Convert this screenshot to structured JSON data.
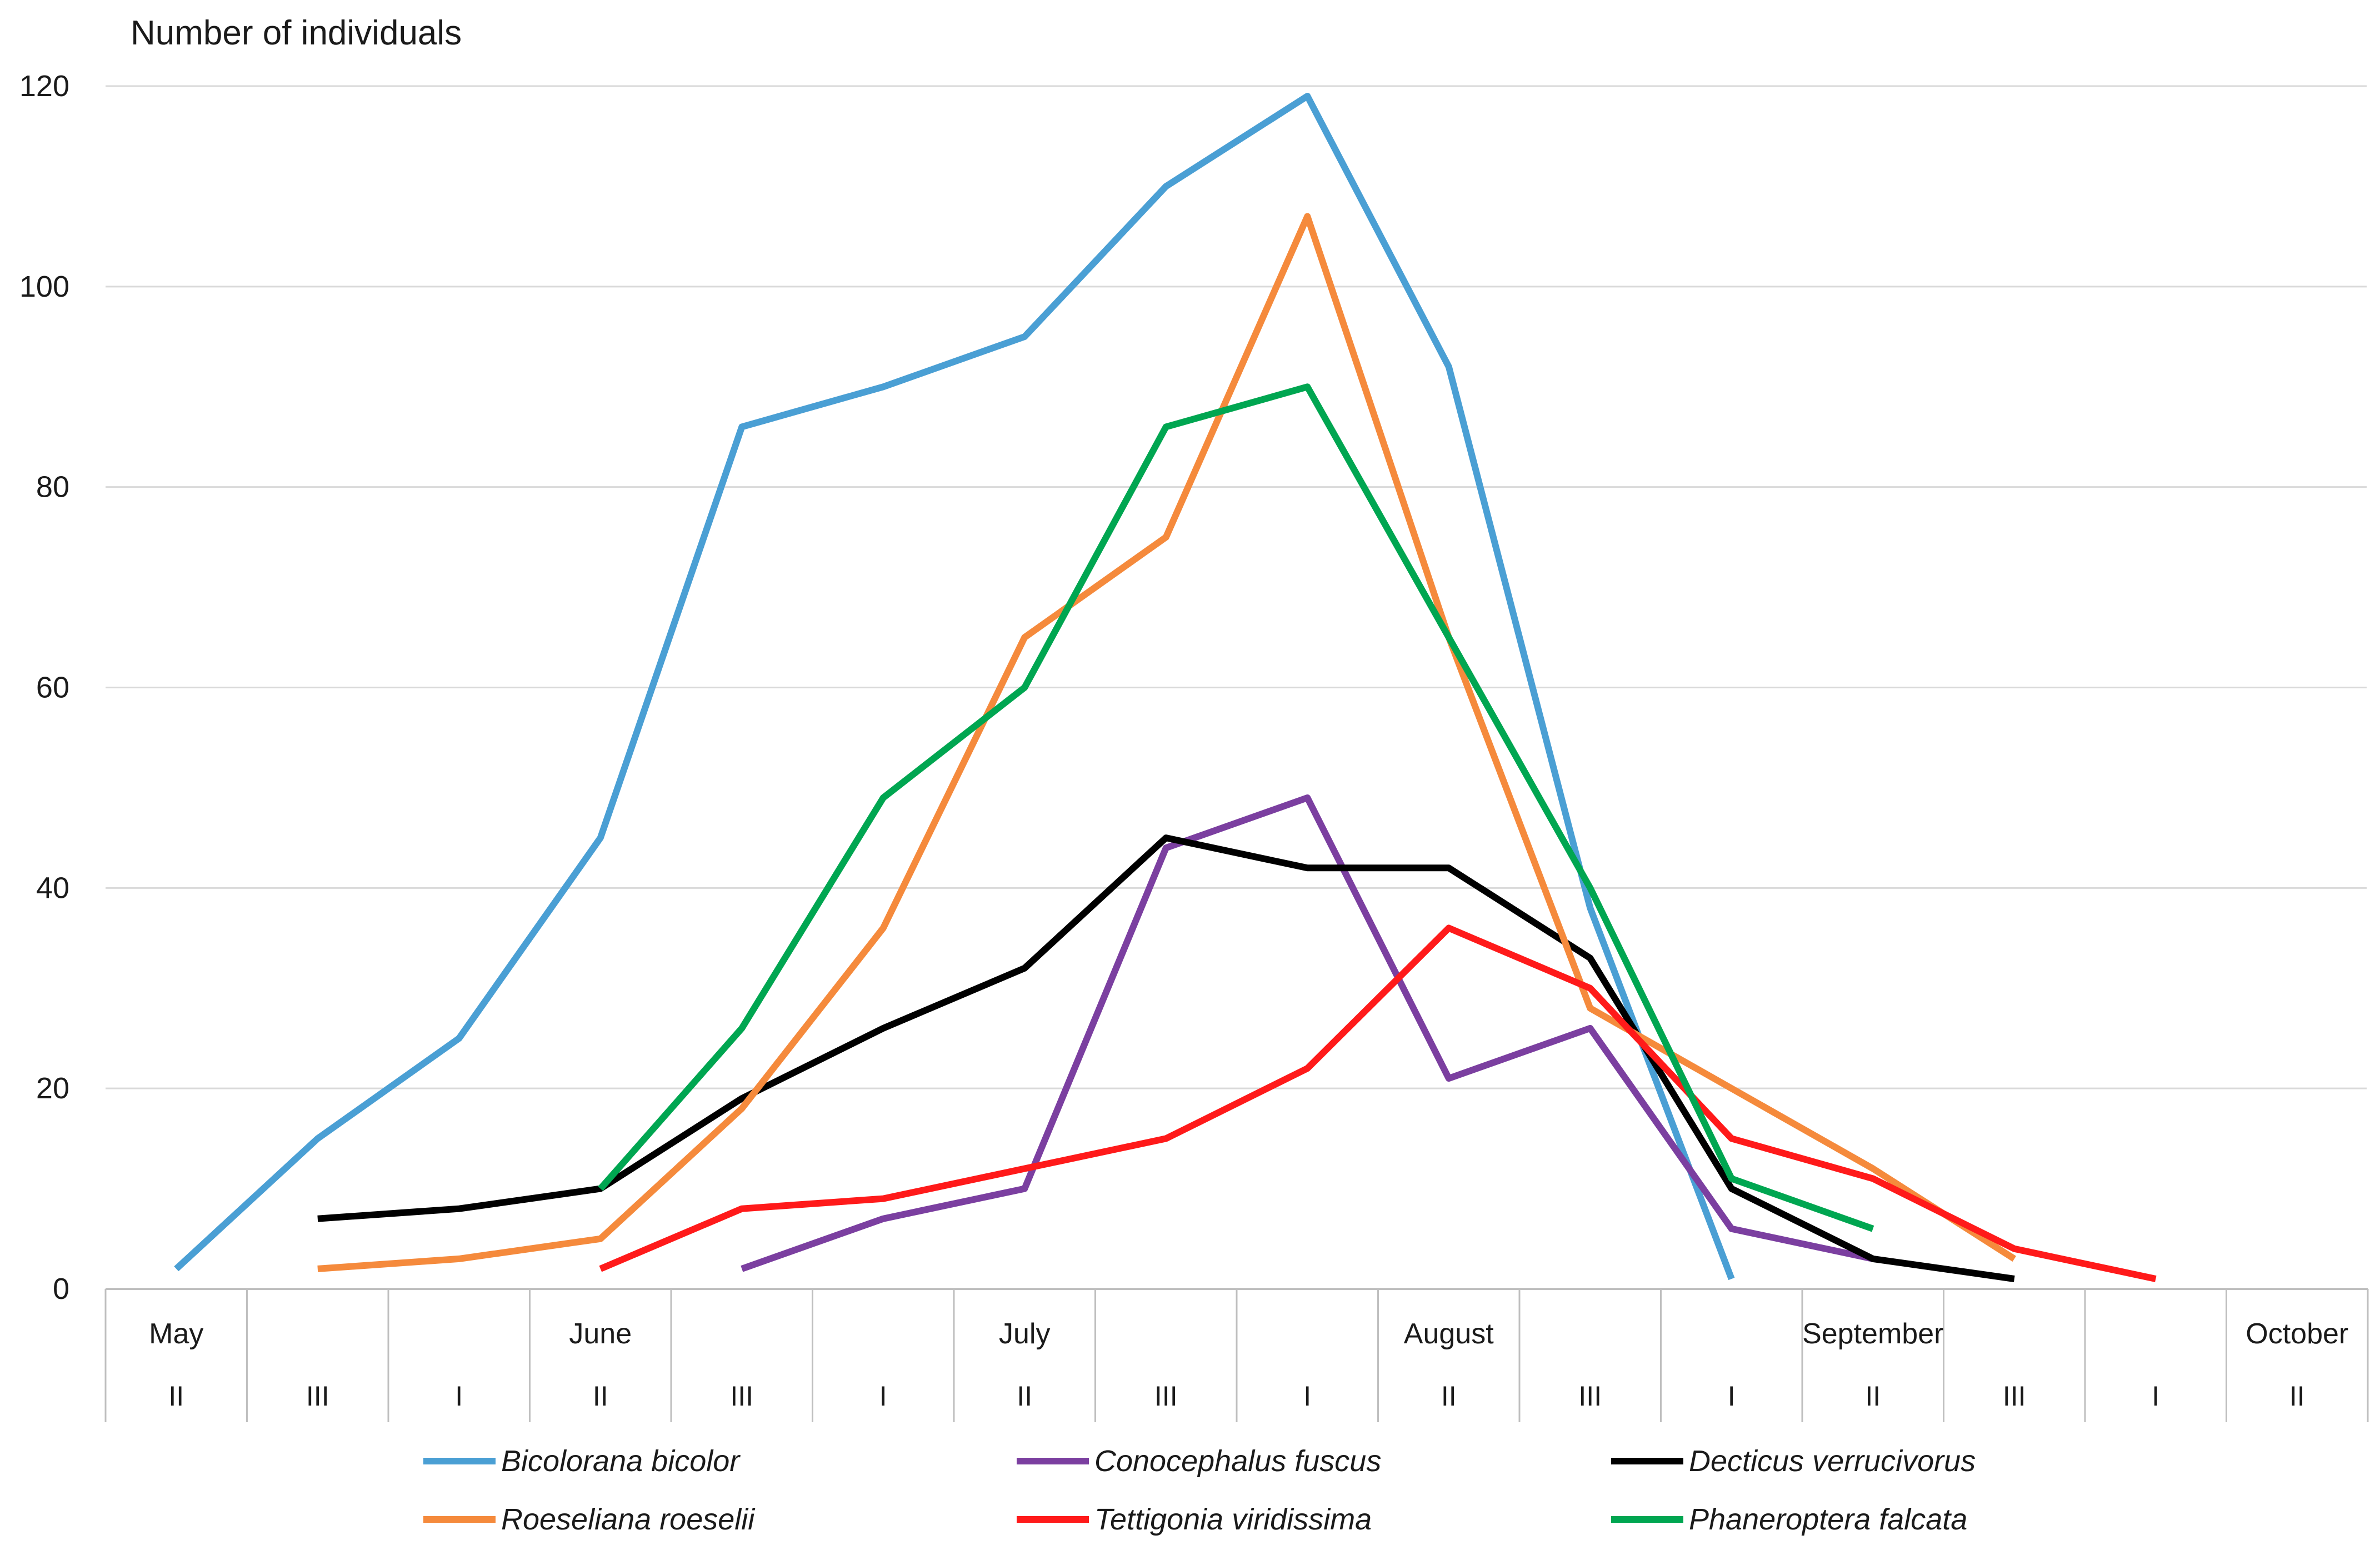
{
  "chart_data": {
    "type": "line",
    "title": "",
    "ylabel": "Number of individuals",
    "xlabel": "",
    "ylim": [
      0,
      120
    ],
    "yticks": [
      0,
      20,
      40,
      60,
      80,
      100,
      120
    ],
    "grid": true,
    "legend_position": "bottom",
    "months": [
      {
        "label": "May",
        "at": 0
      },
      {
        "label": "June",
        "at": 3
      },
      {
        "label": "July",
        "at": 6
      },
      {
        "label": "August",
        "at": 9
      },
      {
        "label": "September",
        "at": 12
      },
      {
        "label": "October",
        "at": 15
      }
    ],
    "categories": [
      "II",
      "III",
      "I",
      "II",
      "III",
      "I",
      "II",
      "III",
      "I",
      "II",
      "III",
      "I",
      "II",
      "III",
      "I",
      "II"
    ],
    "series": [
      {
        "name": "Bicolorana bicolor",
        "color": "#4a9fd4",
        "values": [
          2,
          15,
          25,
          45,
          86,
          90,
          95,
          110,
          119,
          92,
          38,
          1,
          null,
          null,
          null,
          null
        ]
      },
      {
        "name": "Conocephalus fuscus",
        "color": "#7b3fa0",
        "values": [
          null,
          null,
          null,
          null,
          2,
          7,
          10,
          44,
          49,
          21,
          26,
          6,
          3,
          null,
          null,
          null
        ]
      },
      {
        "name": "Decticus verrucivorus",
        "color": "#000000",
        "values": [
          null,
          7,
          8,
          10,
          19,
          26,
          32,
          45,
          42,
          42,
          33,
          10,
          3,
          1,
          null,
          null
        ]
      },
      {
        "name": "Roeseliana roeselii",
        "color": "#f58a3c",
        "values": [
          null,
          2,
          3,
          5,
          18,
          36,
          65,
          75,
          107,
          65,
          28,
          20,
          12,
          3,
          null,
          null
        ]
      },
      {
        "name": "Tettigonia viridissima",
        "color": "#ff1a1a",
        "values": [
          null,
          null,
          null,
          2,
          8,
          9,
          12,
          15,
          22,
          36,
          30,
          15,
          11,
          4,
          1,
          null
        ]
      },
      {
        "name": "Phaneroptera falcata",
        "color": "#00a651",
        "values": [
          null,
          null,
          null,
          10,
          26,
          49,
          60,
          86,
          90,
          65,
          40,
          11,
          6,
          null,
          null,
          null
        ]
      }
    ]
  }
}
